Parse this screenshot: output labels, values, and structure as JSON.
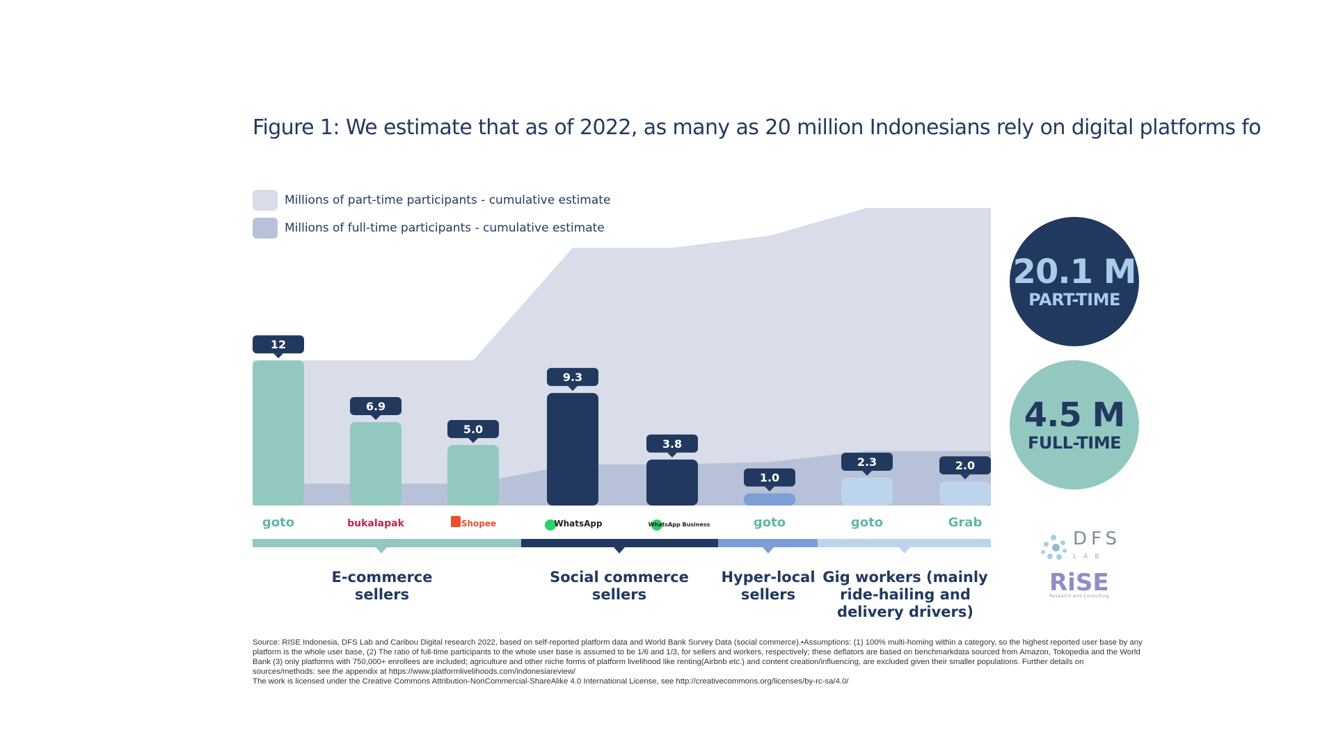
{
  "title": "Figure 1: We estimate that as of 2022, as many as 20 million Indonesians rely on digital platforms fo",
  "legend": {
    "part_time": "Millions of part-time participants - cumulative estimate",
    "full_time": "Millions of full-time participants - cumulative estimate"
  },
  "colors": {
    "part_time_area": "#d8dde9",
    "full_time_area": "#b7c1d8",
    "ecommerce": "#93c8c1",
    "social": "#22395f",
    "hyperlocal": "#7b9fd6",
    "gig": "#bcd4ec",
    "label_box": "#22395f"
  },
  "chart_data": {
    "type": "bar",
    "categories": [
      "goto",
      "bukalapak",
      "Shopee",
      "WhatsApp",
      "WhatsApp Business",
      "goto",
      "goto",
      "Grab"
    ],
    "values": [
      12,
      6.9,
      5.0,
      9.3,
      3.8,
      1.0,
      2.3,
      2.0
    ],
    "value_labels": [
      "12",
      "6.9",
      "5.0",
      "9.3",
      "3.8",
      "1.0",
      "2.3",
      "2.0"
    ],
    "groups": [
      "ecommerce",
      "ecommerce",
      "ecommerce",
      "social",
      "social",
      "hyperlocal",
      "gig",
      "gig"
    ],
    "part_time_cumulative": [
      12,
      12,
      12,
      21.3,
      21.3,
      22.3,
      24.6,
      24.6
    ],
    "full_time_cumulative": [
      1.8,
      1.8,
      1.8,
      3.4,
      3.4,
      3.6,
      4.5,
      4.5
    ],
    "ylim": [
      0,
      25
    ]
  },
  "categories_labels": [
    {
      "key": "ecommerce",
      "lines": [
        "E-commerce",
        "sellers"
      ]
    },
    {
      "key": "social",
      "lines": [
        "Social commerce",
        "sellers"
      ]
    },
    {
      "key": "hyperlocal",
      "lines": [
        "Hyper-local",
        "sellers"
      ]
    },
    {
      "key": "gig",
      "lines": [
        "Gig workers (mainly",
        "ride-hailing and",
        "delivery drivers)"
      ]
    }
  ],
  "totals": {
    "part_time_value": "20.1 M",
    "part_time_label": "PART-TIME",
    "full_time_value": "4.5 M",
    "full_time_label": "FULL-TIME"
  },
  "brands": {
    "dfs": "DFS",
    "dfs_sub": "LAB",
    "rise": "RiSE",
    "rise_sub": "Research and Consulting"
  },
  "source": {
    "line1": "Source: RISE Indonesia, DFS Lab and Caribou Digital research 2022, based on self-reported platform data and World Bank Survey Data (social commerce).•Assumptions: (1) 100% multi-homing within a category, so the highest reported user base by any platform is the whole user base, (2) The ratio of full-time participants to the whole user base is assumed to be 1/6 and 1/3, for sellers and workers, respectively; these deflators are based on benchmarkdata sourced from Amazon, Tokopedia and the World Bank (3) only platforms with 750,000+ enrollees are included; agriculture and other niche forms of platform livelihood like renting(Airbnb etc.) and content creation/influencing, are excluded given their smaller populations. Further details on sources/methods: see the appendix at https://www.platformlivelihoods.com/indonesiareview/",
    "line2": "The work is licensed under the Creative Commons Attribution-NonCommercial-ShareAlike 4.0 International License, see http://creativecommons.org/licenses/by-rc-sa/4.0/"
  }
}
